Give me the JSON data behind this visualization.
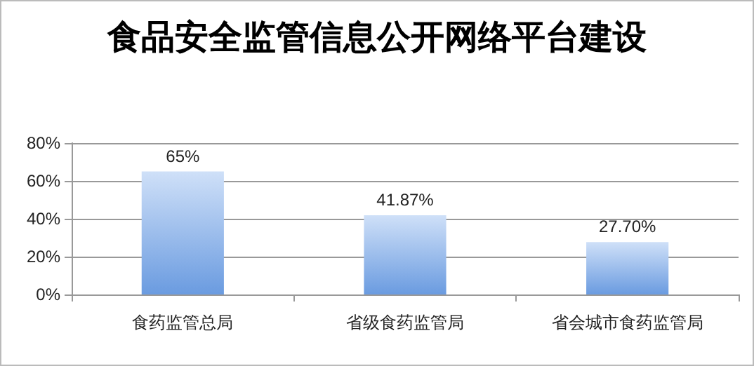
{
  "chart_data": {
    "type": "bar",
    "title": "食品安全监管信息公开网络平台建设",
    "categories": [
      "食药监管总局",
      "省级食药监管局",
      "省会城市食药监管局"
    ],
    "values": [
      65,
      41.87,
      27.7
    ],
    "color": "#6a9be0",
    "value_labels": [
      "65%",
      "41.87%",
      "27.70%"
    ],
    "ylim": [
      0,
      80
    ],
    "yticks": [
      {
        "value": 0,
        "label": "0%"
      },
      {
        "value": 20,
        "label": "20%"
      },
      {
        "value": 40,
        "label": "40%"
      },
      {
        "value": 60,
        "label": "60%"
      },
      {
        "value": 80,
        "label": "80%"
      }
    ],
    "grid": "y"
  }
}
